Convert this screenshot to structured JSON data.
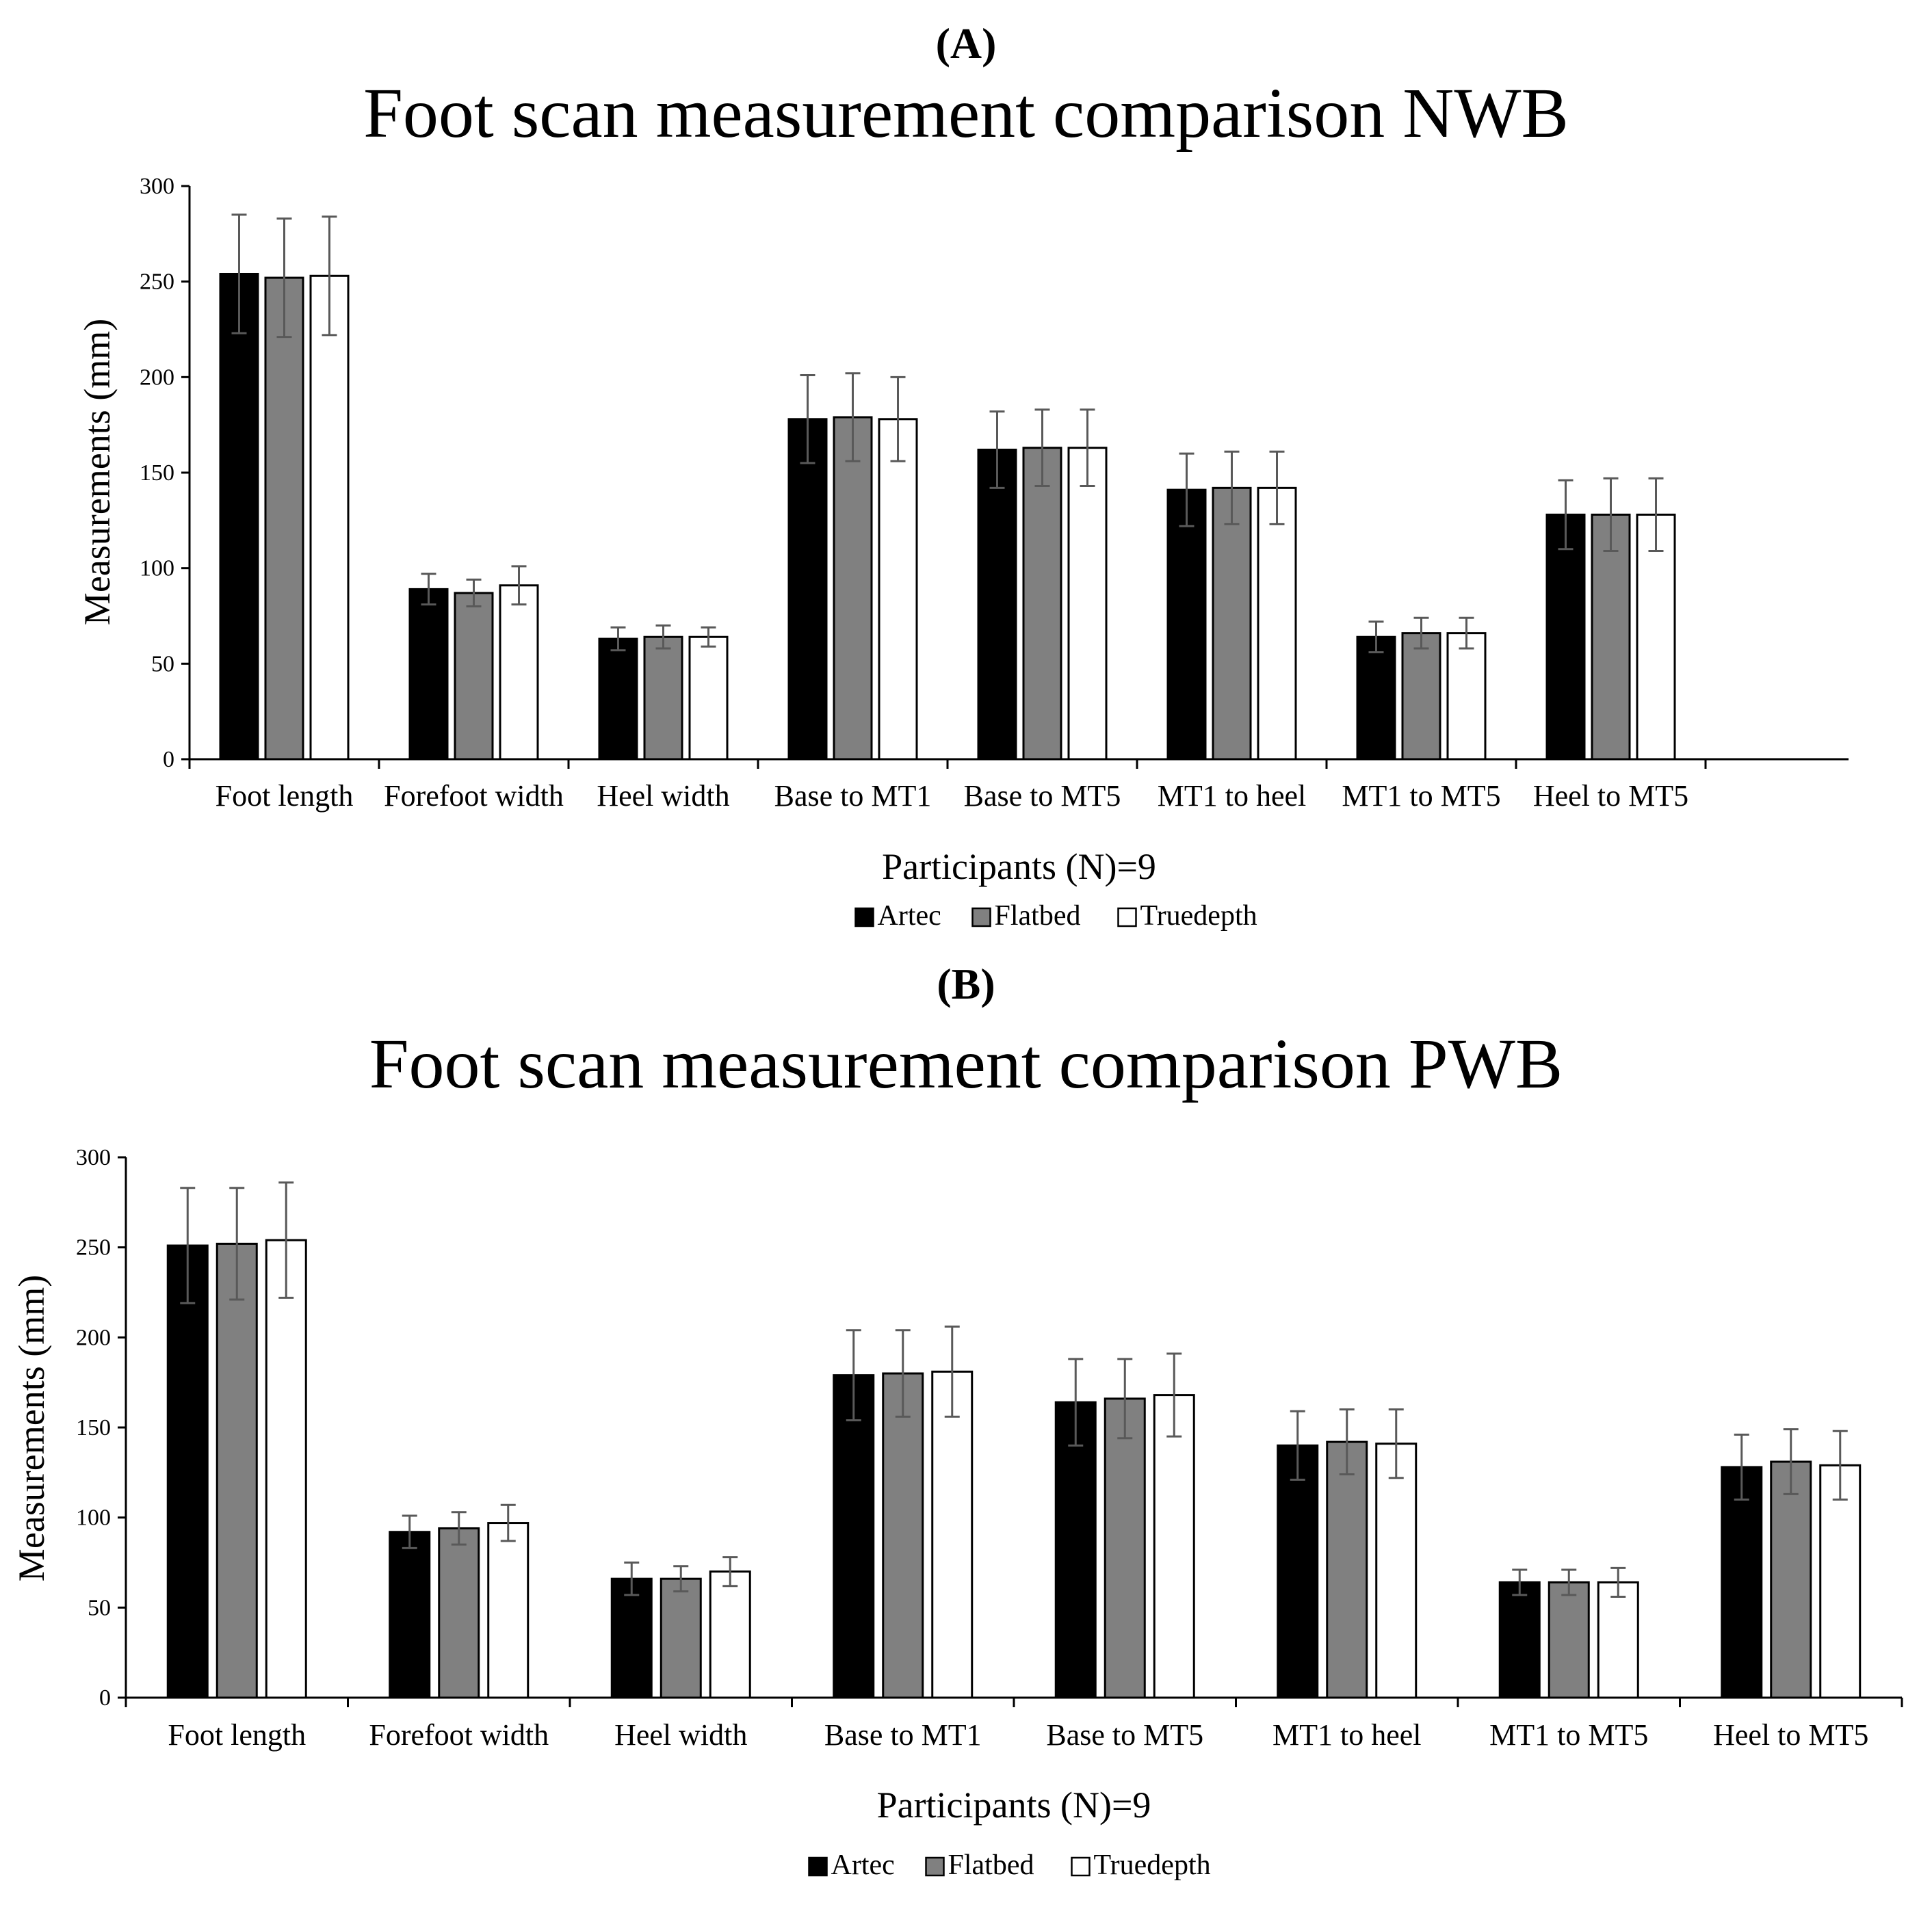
{
  "colors": {
    "Artec": "#000000",
    "Flatbed": "#808080",
    "Truedepth": "#ffffff",
    "error_bar": "#595959",
    "axis": "#000000"
  },
  "legend": [
    "Artec",
    "Flatbed",
    "Truedepth"
  ],
  "chart_data": [
    {
      "panel_label": "(A)",
      "type": "bar",
      "title": "Foot scan measurement comparison NWB",
      "xlabel": "Participants  (N)=9",
      "ylabel": "Measurements (mm)",
      "ylim": [
        0,
        300
      ],
      "yticks": [
        0,
        50,
        100,
        150,
        200,
        250,
        300
      ],
      "grid": false,
      "legend_position": "bottom-center",
      "categories": [
        "Foot length",
        "Forefoot width",
        "Heel width",
        "Base to MT1",
        "Base to MT5",
        "MT1 to heel",
        "MT1 to MT5",
        "Heel to MT5"
      ],
      "series": [
        {
          "name": "Artec",
          "values": [
            254,
            89,
            63,
            178,
            162,
            141,
            64,
            128
          ],
          "errors": [
            31,
            8,
            6,
            23,
            20,
            19,
            8,
            18
          ]
        },
        {
          "name": "Flatbed",
          "values": [
            252,
            87,
            64,
            179,
            163,
            142,
            66,
            128
          ],
          "errors": [
            31,
            7,
            6,
            23,
            20,
            19,
            8,
            19
          ]
        },
        {
          "name": "Truedepth",
          "values": [
            253,
            91,
            64,
            178,
            163,
            142,
            66,
            128
          ],
          "errors": [
            31,
            10,
            5,
            22,
            20,
            19,
            8,
            19
          ]
        }
      ]
    },
    {
      "panel_label": "(B)",
      "type": "bar",
      "title": "Foot scan measurement comparison PWB",
      "xlabel": "Participants  (N)=9",
      "ylabel": "Measurements (mm)",
      "ylim": [
        0,
        300
      ],
      "yticks": [
        0,
        50,
        100,
        150,
        200,
        250,
        300
      ],
      "grid": false,
      "legend_position": "bottom-center",
      "categories": [
        "Foot length",
        "Forefoot width",
        "Heel width",
        "Base to MT1",
        "Base to MT5",
        "MT1 to heel",
        "MT1 to MT5",
        "Heel to MT5"
      ],
      "series": [
        {
          "name": "Artec",
          "values": [
            251,
            92,
            66,
            179,
            164,
            140,
            64,
            128
          ],
          "errors": [
            32,
            9,
            9,
            25,
            24,
            19,
            7,
            18
          ]
        },
        {
          "name": "Flatbed",
          "values": [
            252,
            94,
            66,
            180,
            166,
            142,
            64,
            131
          ],
          "errors": [
            31,
            9,
            7,
            24,
            22,
            18,
            7,
            18
          ]
        },
        {
          "name": "Truedepth",
          "values": [
            254,
            97,
            70,
            181,
            168,
            141,
            64,
            129
          ],
          "errors": [
            32,
            10,
            8,
            25,
            23,
            19,
            8,
            19
          ]
        }
      ]
    }
  ]
}
